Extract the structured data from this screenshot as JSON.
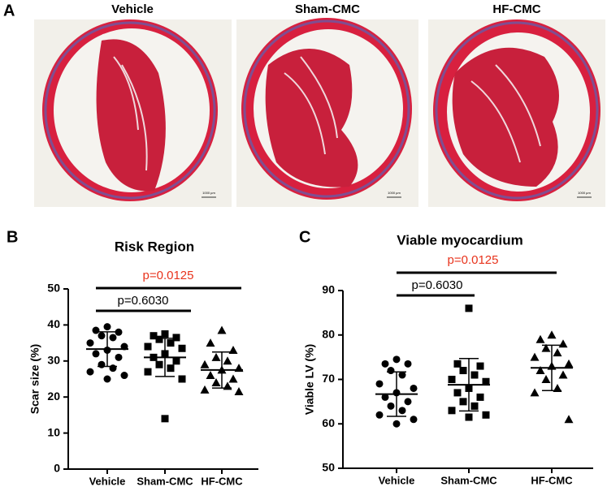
{
  "panel_a": {
    "label": "A",
    "images": [
      {
        "title": "Vehicle"
      },
      {
        "title": "Sham-CMC"
      },
      {
        "title": "HF-CMC"
      }
    ],
    "scale_bar": "1000 µm"
  },
  "chart_data": [
    {
      "type": "scatter",
      "panel": "B",
      "title": "Risk Region",
      "y_label": "Scar size (%)",
      "categories": [
        "Vehicle",
        "Sham-CMC",
        "HF-CMC"
      ],
      "color": "#000000",
      "ylim": [
        0,
        50
      ],
      "yticks": [
        0,
        10,
        20,
        30,
        40,
        50
      ],
      "groups": [
        {
          "marker": "circle",
          "values": [
            39.5,
            38.5,
            38,
            37,
            36.5,
            35,
            34,
            33,
            32,
            31,
            29,
            28,
            27,
            26,
            25
          ],
          "mean": 33.3,
          "sd": 4.8
        },
        {
          "marker": "square",
          "values": [
            37.5,
            37,
            36.5,
            36,
            35,
            34,
            33.5,
            32,
            31,
            30,
            29,
            28,
            27,
            25,
            14
          ],
          "mean": 31.0,
          "sd": 5.3
        },
        {
          "marker": "triangle",
          "values": [
            38.5,
            35,
            33,
            31,
            30,
            29,
            28,
            27.5,
            26,
            25,
            24,
            23,
            22,
            21.5
          ],
          "mean": 27.5,
          "sd": 5.0
        }
      ],
      "annotations": [
        {
          "text": "p=0.0125",
          "color": "#e8331c"
        },
        {
          "text": "p=0.6030",
          "color": "#000000"
        }
      ]
    },
    {
      "type": "scatter",
      "panel": "C",
      "title": "Viable myocardium",
      "y_label": "Viable LV  (%)",
      "categories": [
        "Vehicle",
        "Sham-CMC",
        "HF-CMC"
      ],
      "color": "#000000",
      "ylim": [
        50,
        90
      ],
      "yticks": [
        50,
        60,
        70,
        80,
        90
      ],
      "groups": [
        {
          "marker": "circle",
          "values": [
            74.5,
            73.5,
            73.5,
            72,
            71,
            69,
            68,
            67,
            66,
            65,
            64,
            63,
            62,
            61,
            60
          ],
          "mean": 66.7,
          "sd": 5.0
        },
        {
          "marker": "square",
          "values": [
            86,
            73.5,
            73,
            72,
            71,
            70,
            69.5,
            68,
            67,
            66,
            65,
            64,
            63,
            62,
            61.5
          ],
          "mean": 68.8,
          "sd": 5.9
        },
        {
          "marker": "triangle",
          "values": [
            80,
            79,
            78,
            77,
            76,
            75,
            73.5,
            73,
            72,
            71,
            70,
            68,
            67,
            61
          ],
          "mean": 72.6,
          "sd": 5.1
        }
      ],
      "annotations": [
        {
          "text": "p=0.0125",
          "color": "#e8331c"
        },
        {
          "text": "p=0.6030",
          "color": "#000000"
        }
      ]
    }
  ]
}
